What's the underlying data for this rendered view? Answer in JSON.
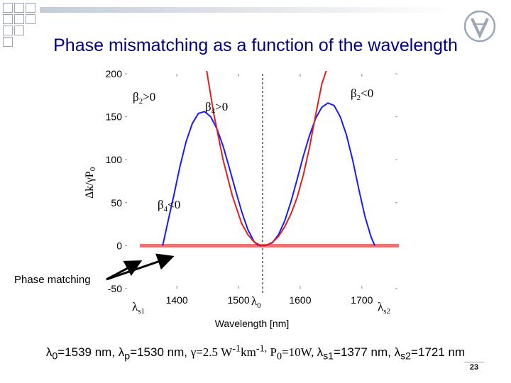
{
  "slide": {
    "title": "Phase mismatching as a function of the wavelength",
    "page_number": "23",
    "footer": {
      "l0_sym": "λ",
      "l0_sub": "0",
      "l0_val": "=1539 nm, ",
      "lp_sym": "λ",
      "lp_sub": "p",
      "lp_val": "=1530 nm, ",
      "gamma": "γ=2.5 W",
      "gamma_sup1": "-1",
      "gamma_km": "km",
      "gamma_sup2": "-1,",
      "p0_sym": " P",
      "p0_sub": "0",
      "p0_val": "=10W, ",
      "ls1_sym": "λ",
      "ls1_sub": "s1",
      "ls1_val": "=1377 nm, ",
      "ls2_sym": "λ",
      "ls2_sub": "s2",
      "ls2_val": "=1721 nm"
    },
    "colors": {
      "title": "#000080",
      "decor": "#9aa7b8"
    },
    "logo_icon": "technion-logo-icon"
  },
  "chart_data": {
    "type": "line",
    "title": "",
    "xlabel": "Wavelength [nm]",
    "ylabel_main": "Δk/γP",
    "ylabel_sub": "0",
    "xlim": [
      1340,
      1760
    ],
    "ylim": [
      -50,
      200
    ],
    "xticks": [
      1400,
      1500,
      1600,
      1700
    ],
    "yticks": [
      -50,
      0,
      50,
      100,
      150,
      200
    ],
    "grid": false,
    "series": [
      {
        "name": "",
        "color": "#1a1aff",
        "x": [
          1377,
          1385,
          1395,
          1405,
          1415,
          1425,
          1435,
          1445,
          1455,
          1465,
          1475,
          1485,
          1495,
          1505,
          1515,
          1525,
          1530,
          1535,
          1539,
          1545,
          1555,
          1565,
          1575,
          1585,
          1595,
          1605,
          1615,
          1625,
          1635,
          1645,
          1655,
          1665,
          1675,
          1685,
          1695,
          1705,
          1715,
          1721
        ],
        "y": [
          0,
          26,
          58,
          92,
          121,
          142,
          154,
          156,
          150,
          136,
          116,
          91,
          65,
          40,
          19,
          5,
          1.5,
          0.2,
          0,
          0.4,
          3.5,
          13,
          29,
          51,
          77,
          104,
          128,
          148,
          161,
          166,
          163,
          150,
          129,
          100,
          66,
          34,
          10,
          0
        ]
      },
      {
        "name": "",
        "color": "#e02020",
        "x": [
          1448,
          1460,
          1475,
          1490,
          1505,
          1515,
          1525,
          1535,
          1539,
          1545,
          1555,
          1565,
          1575,
          1585,
          1595,
          1605,
          1615,
          1625,
          1635,
          1643
        ],
        "y": [
          205,
          153,
          100,
          58,
          26,
          13,
          4.5,
          0.5,
          0,
          0.5,
          4,
          11,
          22,
          37,
          56,
          82,
          114,
          152,
          188,
          205
        ]
      },
      {
        "name": "",
        "color": "#f07070",
        "x": [
          1340,
          1760
        ],
        "y": [
          0,
          0
        ]
      }
    ],
    "vline": {
      "x": 1539,
      "style": "dashed"
    },
    "annotations": {
      "b2_pos": {
        "sym": "β",
        "sub": "2",
        "tail": ">0"
      },
      "b4_pos": {
        "sym": "β",
        "sub": "4",
        "tail": ">0"
      },
      "b2_neg": {
        "sym": "β",
        "sub": "2",
        "tail": "<0"
      },
      "b4_neg": {
        "sym": "β",
        "sub": "4",
        "tail": "<0"
      },
      "phase_matching": "Phase matching",
      "ls1": {
        "sym": "λ",
        "sub": "s1"
      },
      "l0": {
        "sym": "λ",
        "sub": "0"
      },
      "ls2": {
        "sym": "λ",
        "sub": "s2"
      }
    }
  }
}
